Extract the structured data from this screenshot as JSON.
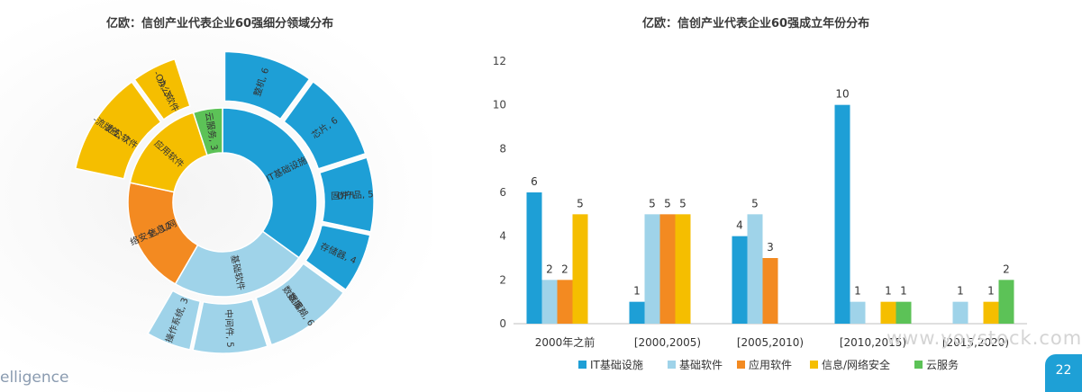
{
  "colors": {
    "it": "#1e9fd6",
    "basic": "#9fd3e9",
    "app": "#f38a21",
    "security": "#f5be00",
    "cloud": "#5cc257"
  },
  "page": {
    "title_left": "亿欧：信创产业代表企业60强细分领域分布",
    "title_right": "亿欧：信创产业代表企业60强成立年份分布",
    "brand_partial": "elligence",
    "watermark": "www.yoystock.com",
    "page_number": "22"
  },
  "chart_data": [
    {
      "type": "sunburst",
      "title": "亿欧：信创产业代表企业60强细分领域分布",
      "inner": [
        {
          "name": "IT基础设施",
          "value": 21,
          "color": "#1e9fd6"
        },
        {
          "name": "基础软件",
          "value": 14,
          "color": "#9fd3e9"
        },
        {
          "name": "信息/网络安全, 12",
          "value": 12,
          "color": "#f38a21"
        },
        {
          "name": "应用软件",
          "value": 10,
          "color": "#f5be00"
        },
        {
          "name": "云服务, 3",
          "value": 3,
          "color": "#5cc257"
        }
      ],
      "outer": [
        {
          "name": "整机, 6",
          "value": 6,
          "color": "#1e9fd6"
        },
        {
          "name": "芯片, 6",
          "value": 6,
          "color": "#1e9fd6"
        },
        {
          "name": "固件/IO产品, 5",
          "value": 5,
          "color": "#1e9fd6"
        },
        {
          "name": "存储器, 4",
          "value": 4,
          "color": "#1e9fd6"
        },
        {
          "name": "数据库/数据湖, 6",
          "value": 6,
          "color": "#9fd3e9"
        },
        {
          "name": "中间件, 5",
          "value": 5,
          "color": "#9fd3e9"
        },
        {
          "name": "操作系统, 3",
          "value": 3,
          "color": "#9fd3e9"
        },
        {
          "name": "办公软件-流版签, 7",
          "value": 7,
          "color": "#f5be00"
        },
        {
          "name": "办公软件-OA, 3",
          "value": 3,
          "color": "#f5be00"
        }
      ]
    },
    {
      "type": "bar",
      "title": "亿欧：信创产业代表企业60强成立年份分布",
      "categories": [
        "2000年之前",
        "[2000,2005)",
        "[2005,2010)",
        "[2010,2015)",
        "[2015,2020)"
      ],
      "ylim": [
        0,
        12
      ],
      "yticks": [
        0,
        2,
        4,
        6,
        8,
        10,
        12
      ],
      "series": [
        {
          "name": "IT基础设施",
          "color": "#1e9fd6",
          "values": [
            6,
            1,
            4,
            10,
            0
          ]
        },
        {
          "name": "基础软件",
          "color": "#9fd3e9",
          "values": [
            2,
            5,
            5,
            1,
            1
          ]
        },
        {
          "name": "应用软件",
          "color": "#f38a21",
          "values": [
            2,
            5,
            3,
            0,
            0
          ]
        },
        {
          "name": "信息/网络安全",
          "color": "#f5be00",
          "values": [
            5,
            5,
            0,
            1,
            1
          ]
        },
        {
          "name": "云服务",
          "color": "#5cc257",
          "values": [
            0,
            0,
            0,
            1,
            2
          ]
        }
      ],
      "legend_position": "bottom"
    }
  ]
}
